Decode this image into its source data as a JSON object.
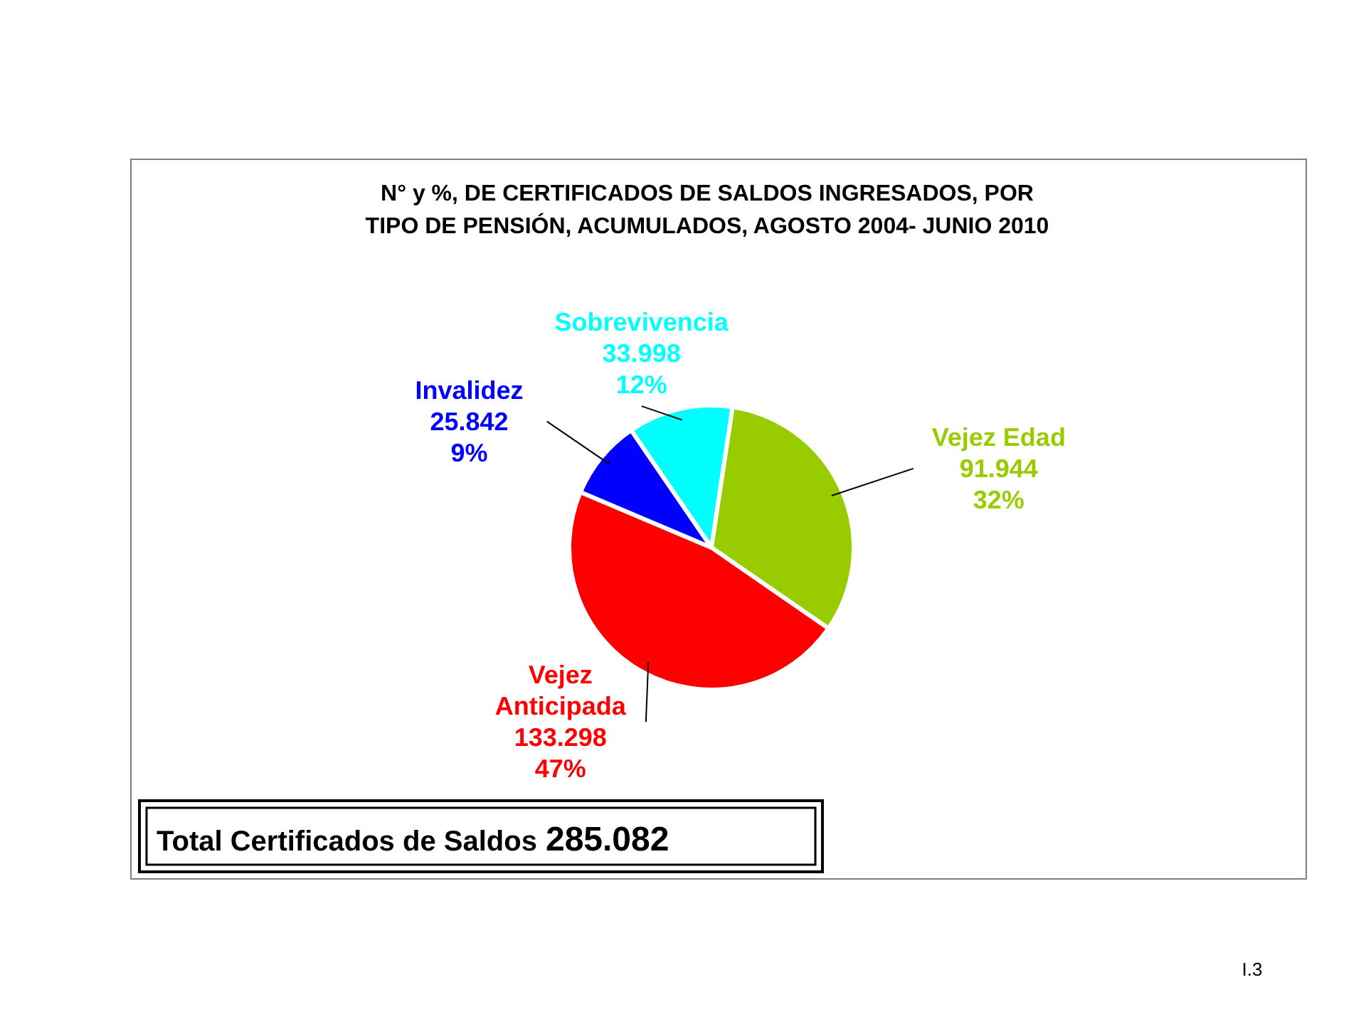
{
  "chart_data": {
    "type": "pie",
    "title": "N° y %, DE CERTIFICADOS DE SALDOS INGRESADOS, POR TIPO DE PENSIÓN, ACUMULADOS, AGOSTO 2004- JUNIO 2010",
    "categories": [
      "Sobrevivencia",
      "Vejez Edad",
      "Vejez Anticipada",
      "Invalidez"
    ],
    "values": [
      33998,
      91944,
      133298,
      25842
    ],
    "colors": [
      "#00ffff",
      "#99cc00",
      "#ff0000",
      "#0000ff"
    ],
    "value_labels": [
      "33.998\n12%",
      "91.944\n32%",
      "133.298\n47%",
      "25.842\n9%"
    ],
    "annotations": [
      "Total Certificados de Saldos 285.082",
      "I.3"
    ]
  }
}
